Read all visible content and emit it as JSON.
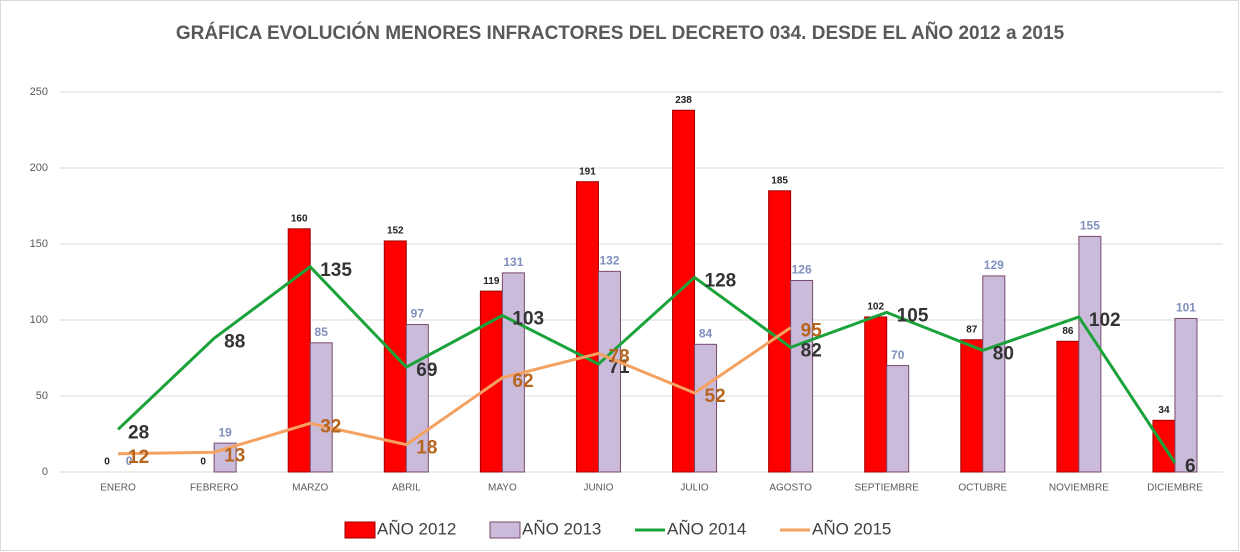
{
  "chart_data": {
    "type": "bar",
    "title": "GRÁFICA EVOLUCIÓN MENORES INFRACTORES DEL DECRETO 034. DESDE EL AÑO 2012 a 2015",
    "categories": [
      "ENERO",
      "FEBRERO",
      "MARZO",
      "ABRIL",
      "MAYO",
      "JUNIO",
      "JULIO",
      "AGOSTO",
      "SEPTIEMBRE",
      "OCTUBRE",
      "NOVIEMBRE",
      "DICIEMBRE"
    ],
    "series": [
      {
        "name": "AÑO 2012",
        "type": "bar",
        "color": "#ff0000",
        "label_color": "#222222",
        "values": [
          0,
          0,
          160,
          152,
          119,
          191,
          238,
          185,
          102,
          87,
          86,
          34
        ]
      },
      {
        "name": "AÑO 2013",
        "type": "bar",
        "color": "#cbbbdb",
        "label_color": "#7f8fbf",
        "values": [
          0,
          19,
          85,
          97,
          131,
          132,
          84,
          126,
          70,
          129,
          155,
          101
        ]
      },
      {
        "name": "AÑO 2014",
        "type": "line",
        "color": "#1aa33a",
        "label_color": "#333333",
        "values": [
          28,
          88,
          135,
          69,
          103,
          71,
          128,
          82,
          105,
          80,
          102,
          6
        ]
      },
      {
        "name": "AÑO 2015",
        "type": "line",
        "color": "#f4a261",
        "label_color": "#b5651d",
        "values": [
          12,
          13,
          32,
          18,
          62,
          78,
          52,
          95,
          null,
          null,
          null,
          null
        ]
      }
    ],
    "ylim": [
      0,
      250
    ],
    "yticks": [
      0,
      50,
      100,
      150,
      200,
      250
    ],
    "grid": true
  }
}
